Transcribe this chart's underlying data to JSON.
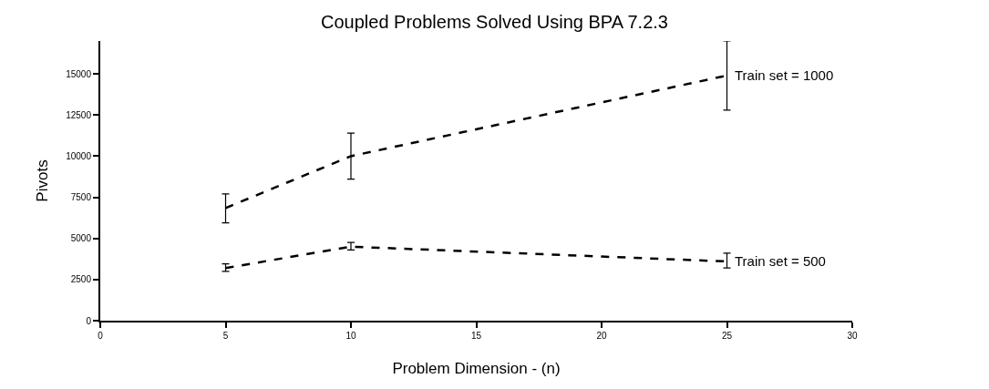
{
  "chart_data": {
    "type": "line",
    "title": "Coupled Problems Solved Using BPA 7.2.3",
    "xlabel": "Problem Dimension - (n)",
    "ylabel": "Pivots",
    "x": [
      5,
      10,
      25
    ],
    "series": [
      {
        "name": "Train set = 1000",
        "color": "#000000",
        "values": [
          6850,
          10000,
          14900
        ],
        "errors": [
          [
            5950,
            7700
          ],
          [
            8600,
            11400
          ],
          [
            12800,
            17000
          ]
        ],
        "line_style": "dashed"
      },
      {
        "name": "Train set = 500",
        "color": "#000000",
        "values": [
          3200,
          4500,
          3600
        ],
        "errors": [
          [
            3000,
            3450
          ],
          [
            4300,
            4750
          ],
          [
            3200,
            4100
          ]
        ],
        "line_style": "dashed"
      }
    ],
    "xlim": [
      0,
      30
    ],
    "xticks": [
      0,
      5,
      10,
      15,
      20,
      25,
      30
    ],
    "ylim": [
      0,
      17000
    ],
    "yticks": [
      0,
      2500,
      5000,
      7500,
      10000,
      12500,
      15000
    ],
    "legend": false
  }
}
